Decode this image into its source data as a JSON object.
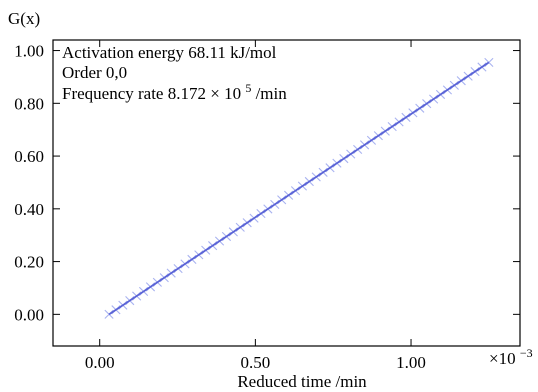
{
  "chart_data": {
    "type": "scatter",
    "xlabel": "Reduced time /min",
    "ylabel": "G(x)",
    "x_scale_label": "×10",
    "x_scale_exponent": "−3",
    "xlim": [
      -0.00015,
      0.00135
    ],
    "ylim": [
      -0.12,
      1.04
    ],
    "x_ticks": [
      0.0,
      0.0005,
      0.001
    ],
    "x_tick_labels": [
      "0.00",
      "0.50",
      "1.00"
    ],
    "y_ticks": [
      0.0,
      0.2,
      0.4,
      0.6,
      0.8,
      1.0
    ],
    "y_tick_labels": [
      "0.00",
      "0.20",
      "0.40",
      "0.60",
      "0.80",
      "1.00"
    ],
    "grid": false,
    "annotations": {
      "activation_energy": "Activation energy 68.11 kJ/mol",
      "order": "Order 0,0",
      "frequency_rate_prefix": "Frequency rate 8.172 × 10",
      "frequency_rate_exponent": "5",
      "frequency_rate_suffix": " /min"
    },
    "series": [
      {
        "kind": "scatter",
        "marker": "x",
        "color": "#a9b3f0",
        "x_start": 3e-05,
        "x_end": 0.00125,
        "y_start": 0.0,
        "y_end": 0.955,
        "count": 56
      },
      {
        "kind": "fit-line",
        "color": "#5a63d6",
        "x": [
          3e-05,
          0.00125
        ],
        "y": [
          0.0,
          0.955
        ]
      }
    ]
  }
}
